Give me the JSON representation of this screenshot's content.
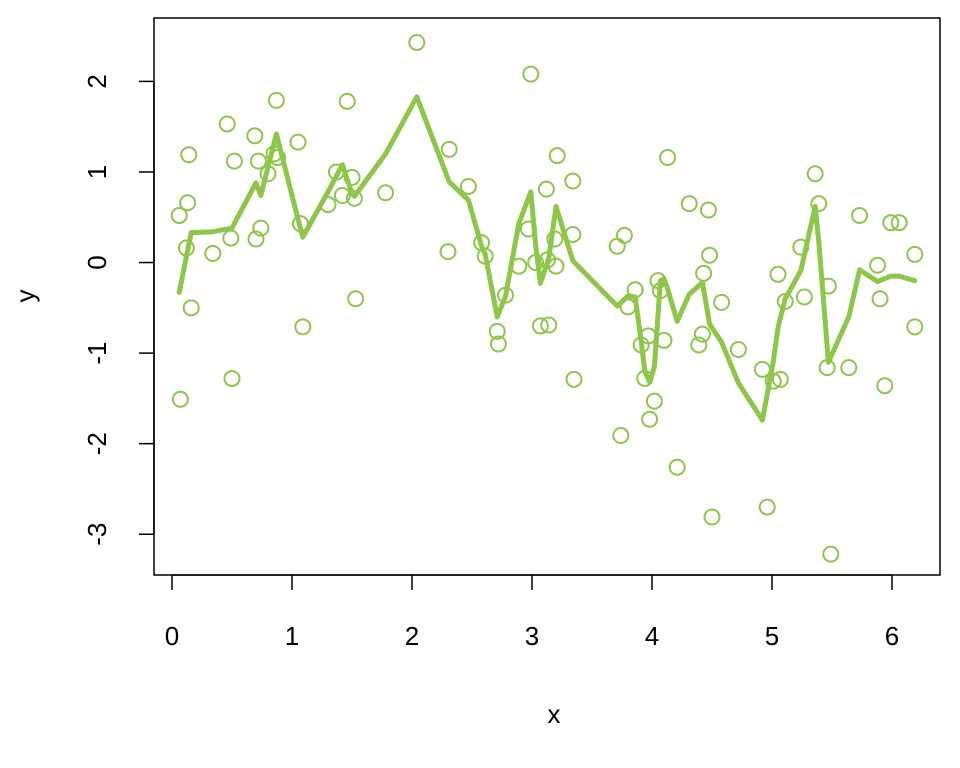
{
  "chart_data": {
    "type": "scatter",
    "title": "",
    "xlabel": "x",
    "ylabel": "y",
    "xlim": [
      -0.15,
      6.4
    ],
    "ylim": [
      -3.45,
      2.7
    ],
    "xticks": [
      0,
      1,
      2,
      3,
      4,
      5,
      6
    ],
    "yticks": [
      -3,
      -2,
      -1,
      0,
      1,
      2
    ],
    "grid": false,
    "legend": "none",
    "color": "#8DC64A",
    "series": [
      {
        "kind": "points",
        "points": [
          [
            0.06,
            0.52
          ],
          [
            0.07,
            -1.51
          ],
          [
            0.12,
            0.16
          ],
          [
            0.13,
            0.66
          ],
          [
            0.14,
            1.19
          ],
          [
            0.16,
            -0.5
          ],
          [
            0.34,
            0.1
          ],
          [
            0.46,
            1.53
          ],
          [
            0.49,
            0.27
          ],
          [
            0.5,
            -1.28
          ],
          [
            0.52,
            1.12
          ],
          [
            0.69,
            1.4
          ],
          [
            0.7,
            0.26
          ],
          [
            0.72,
            1.12
          ],
          [
            0.74,
            0.38
          ],
          [
            0.8,
            0.98
          ],
          [
            0.85,
            1.2
          ],
          [
            0.87,
            1.79
          ],
          [
            0.88,
            1.16
          ],
          [
            1.05,
            1.33
          ],
          [
            1.07,
            0.43
          ],
          [
            1.09,
            -0.71
          ],
          [
            1.3,
            0.64
          ],
          [
            1.37,
            1.0
          ],
          [
            1.42,
            0.74
          ],
          [
            1.46,
            1.78
          ],
          [
            1.5,
            0.94
          ],
          [
            1.52,
            0.71
          ],
          [
            1.53,
            -0.4
          ],
          [
            1.78,
            0.77
          ],
          [
            2.04,
            2.43
          ],
          [
            2.3,
            0.12
          ],
          [
            2.31,
            1.25
          ],
          [
            2.47,
            0.84
          ],
          [
            2.58,
            0.22
          ],
          [
            2.61,
            0.07
          ],
          [
            2.71,
            -0.76
          ],
          [
            2.72,
            -0.9
          ],
          [
            2.78,
            -0.36
          ],
          [
            2.89,
            -0.04
          ],
          [
            2.97,
            0.37
          ],
          [
            2.99,
            2.08
          ],
          [
            3.03,
            0.0
          ],
          [
            3.07,
            -0.7
          ],
          [
            3.12,
            0.81
          ],
          [
            3.13,
            0.03
          ],
          [
            3.14,
            -0.69
          ],
          [
            3.19,
            0.26
          ],
          [
            3.2,
            -0.04
          ],
          [
            3.21,
            1.18
          ],
          [
            3.34,
            0.9
          ],
          [
            3.34,
            0.31
          ],
          [
            3.35,
            -1.29
          ],
          [
            3.71,
            0.18
          ],
          [
            3.74,
            -1.91
          ],
          [
            3.77,
            0.3
          ],
          [
            3.8,
            -0.49
          ],
          [
            3.86,
            -0.3
          ],
          [
            3.91,
            -0.91
          ],
          [
            3.94,
            -1.28
          ],
          [
            3.97,
            -0.81
          ],
          [
            3.98,
            -1.73
          ],
          [
            4.02,
            -1.53
          ],
          [
            4.05,
            -0.2
          ],
          [
            4.07,
            -0.31
          ],
          [
            4.1,
            -0.86
          ],
          [
            4.13,
            1.16
          ],
          [
            4.21,
            -2.26
          ],
          [
            4.31,
            0.65
          ],
          [
            4.39,
            -0.91
          ],
          [
            4.42,
            -0.79
          ],
          [
            4.43,
            -0.12
          ],
          [
            4.47,
            0.58
          ],
          [
            4.48,
            0.08
          ],
          [
            4.5,
            -2.81
          ],
          [
            4.58,
            -0.44
          ],
          [
            4.72,
            -0.96
          ],
          [
            4.92,
            -1.18
          ],
          [
            4.96,
            -2.7
          ],
          [
            5.01,
            -1.31
          ],
          [
            5.05,
            -0.13
          ],
          [
            5.07,
            -1.29
          ],
          [
            5.11,
            -0.43
          ],
          [
            5.24,
            0.17
          ],
          [
            5.27,
            -0.38
          ],
          [
            5.36,
            0.98
          ],
          [
            5.39,
            0.65
          ],
          [
            5.46,
            -1.16
          ],
          [
            5.47,
            -0.26
          ],
          [
            5.49,
            -3.22
          ],
          [
            5.64,
            -1.16
          ],
          [
            5.73,
            0.52
          ],
          [
            5.88,
            -0.03
          ],
          [
            5.9,
            -0.4
          ],
          [
            5.94,
            -1.36
          ],
          [
            5.99,
            0.44
          ],
          [
            6.06,
            0.44
          ],
          [
            6.19,
            0.09
          ],
          [
            6.19,
            -0.71
          ]
        ]
      },
      {
        "kind": "line",
        "points": [
          [
            0.06,
            -0.33
          ],
          [
            0.16,
            0.33
          ],
          [
            0.34,
            0.34
          ],
          [
            0.5,
            0.38
          ],
          [
            0.7,
            0.88
          ],
          [
            0.74,
            0.74
          ],
          [
            0.87,
            1.42
          ],
          [
            1.05,
            0.48
          ],
          [
            1.09,
            0.28
          ],
          [
            1.3,
            0.78
          ],
          [
            1.42,
            1.08
          ],
          [
            1.5,
            0.76
          ],
          [
            1.52,
            0.73
          ],
          [
            1.78,
            1.2
          ],
          [
            2.04,
            1.83
          ],
          [
            2.31,
            0.89
          ],
          [
            2.47,
            0.69
          ],
          [
            2.58,
            0.18
          ],
          [
            2.61,
            0.09
          ],
          [
            2.71,
            -0.6
          ],
          [
            2.78,
            -0.37
          ],
          [
            2.89,
            0.43
          ],
          [
            2.99,
            0.78
          ],
          [
            3.03,
            0.2
          ],
          [
            3.07,
            -0.23
          ],
          [
            3.14,
            0.05
          ],
          [
            3.2,
            0.62
          ],
          [
            3.34,
            0.02
          ],
          [
            3.71,
            -0.48
          ],
          [
            3.8,
            -0.37
          ],
          [
            3.86,
            -0.38
          ],
          [
            3.91,
            -0.87
          ],
          [
            3.94,
            -1.2
          ],
          [
            3.98,
            -1.32
          ],
          [
            4.02,
            -1.15
          ],
          [
            4.07,
            -0.2
          ],
          [
            4.1,
            -0.18
          ],
          [
            4.13,
            -0.29
          ],
          [
            4.21,
            -0.65
          ],
          [
            4.31,
            -0.35
          ],
          [
            4.42,
            -0.22
          ],
          [
            4.48,
            -0.68
          ],
          [
            4.58,
            -0.88
          ],
          [
            4.72,
            -1.33
          ],
          [
            4.92,
            -1.74
          ],
          [
            5.01,
            -1.1
          ],
          [
            5.05,
            -0.72
          ],
          [
            5.11,
            -0.4
          ],
          [
            5.24,
            -0.09
          ],
          [
            5.36,
            0.62
          ],
          [
            5.39,
            0.23
          ],
          [
            5.47,
            -1.1
          ],
          [
            5.64,
            -0.6
          ],
          [
            5.73,
            -0.08
          ],
          [
            5.88,
            -0.21
          ],
          [
            5.99,
            -0.15
          ],
          [
            6.06,
            -0.15
          ],
          [
            6.19,
            -0.2
          ]
        ]
      }
    ]
  }
}
